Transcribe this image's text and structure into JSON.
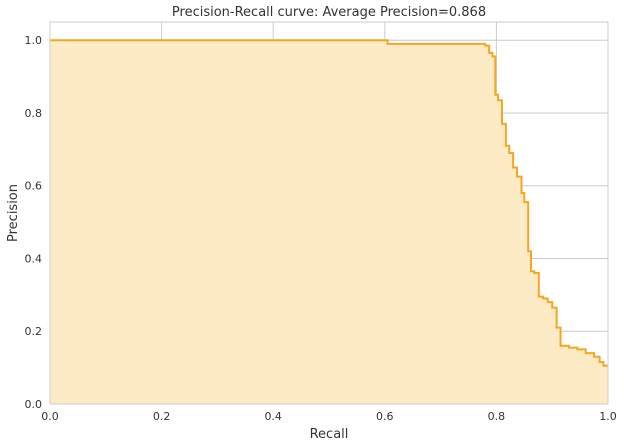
{
  "chart_data": {
    "type": "area",
    "title": "Precision-Recall curve: Average Precision=0.868",
    "xlabel": "Recall",
    "ylabel": "Precision",
    "xlim": [
      0,
      1
    ],
    "ylim": [
      0,
      1.05
    ],
    "x_ticks": [
      0.0,
      0.2,
      0.4,
      0.6,
      0.8,
      1.0
    ],
    "x_tick_labels": [
      "0.0",
      "0.2",
      "0.4",
      "0.6",
      "0.8",
      "1.0"
    ],
    "y_ticks": [
      0.0,
      0.2,
      0.4,
      0.6,
      0.8,
      1.0
    ],
    "y_tick_labels": [
      "0.0",
      "0.2",
      "0.4",
      "0.6",
      "0.8",
      "1.0"
    ],
    "grid": true,
    "step": "post",
    "colors": {
      "line": "#f5a623",
      "fill": "#fdebc6",
      "grid": "#cccccc",
      "spine": "#cccccc"
    },
    "series": [
      {
        "x": [
          0.0,
          0.605,
          0.78,
          0.787,
          0.793,
          0.798,
          0.803,
          0.81,
          0.817,
          0.823,
          0.83,
          0.837,
          0.845,
          0.85,
          0.857,
          0.862,
          0.868,
          0.876,
          0.884,
          0.892,
          0.9,
          0.908,
          0.915,
          0.93,
          0.945,
          0.96,
          0.975,
          0.985,
          0.992,
          1.0
        ],
        "y": [
          1.0,
          0.99,
          0.985,
          0.965,
          0.955,
          0.85,
          0.835,
          0.77,
          0.71,
          0.69,
          0.65,
          0.625,
          0.58,
          0.555,
          0.42,
          0.365,
          0.36,
          0.295,
          0.29,
          0.28,
          0.265,
          0.21,
          0.16,
          0.155,
          0.15,
          0.14,
          0.13,
          0.115,
          0.105,
          0.105
        ]
      }
    ]
  }
}
